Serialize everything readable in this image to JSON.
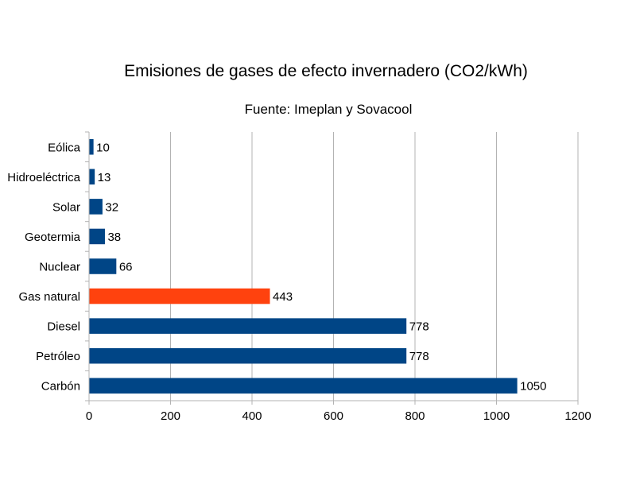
{
  "chart_data": {
    "type": "bar",
    "orientation": "horizontal",
    "title": "Emisiones de gases de efecto invernadero (CO2/kWh)",
    "subtitle": "Fuente: Imeplan y Sovacool",
    "xlabel": "",
    "ylabel": "",
    "categories": [
      "Eólica",
      "Hidroeléctrica",
      "Solar",
      "Geotermia",
      "Nuclear",
      "Gas natural",
      "Diesel",
      "Petróleo",
      "Carbón"
    ],
    "values": [
      10,
      13,
      32,
      38,
      66,
      443,
      778,
      778,
      1050
    ],
    "data_labels": [
      "10",
      "13",
      "32",
      "38",
      "66",
      "443",
      "778",
      "778",
      "1050"
    ],
    "xlim": [
      0,
      1200
    ],
    "xticks": [
      0,
      200,
      400,
      600,
      800,
      1000,
      1200
    ],
    "xtick_labels": [
      "0",
      "200",
      "400",
      "600",
      "800",
      "1000",
      "1200"
    ],
    "grid": "vertical",
    "legend": "none",
    "colors": {
      "default_bar": "#004586",
      "highlight_bar": "#ff420e",
      "grid": "#b3b3b3",
      "axis": "#b3b3b3"
    },
    "highlight_category": "Gas natural"
  }
}
